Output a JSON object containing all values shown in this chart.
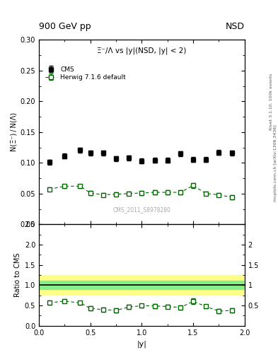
{
  "title_top": "900 GeV pp",
  "title_right": "NSD",
  "plot_title": "Ξ⁻/Λ vs |y|(NSD, |y| < 2)",
  "ylabel_main": "N(Ξ⁻) / N(Λ)",
  "ylabel_ratio": "Ratio to CMS",
  "xlabel": "|y|",
  "watermark": "CMS_2011_S8978280",
  "right_label_top": "Rivet 3.1.10, 100k events",
  "right_label_bottom": "mcplots.cern.ch [arXiv:1306.3436]",
  "cms_color": "black",
  "herwig_color": "#006600",
  "cms_x_pts": [
    0.1,
    0.25,
    0.4,
    0.5,
    0.625,
    0.75,
    0.875,
    1.0,
    1.125,
    1.25,
    1.375,
    1.5,
    1.625,
    1.75,
    1.875
  ],
  "cms_y_pts": [
    0.101,
    0.111,
    0.121,
    0.116,
    0.116,
    0.107,
    0.108,
    0.103,
    0.104,
    0.104,
    0.115,
    0.105,
    0.105,
    0.117,
    0.116
  ],
  "cms_yerr_pts": [
    0.004,
    0.004,
    0.004,
    0.004,
    0.004,
    0.004,
    0.004,
    0.004,
    0.004,
    0.004,
    0.004,
    0.004,
    0.004,
    0.004,
    0.004
  ],
  "herwig_x_pts": [
    0.1,
    0.25,
    0.4,
    0.5,
    0.625,
    0.75,
    0.875,
    1.0,
    1.125,
    1.25,
    1.375,
    1.5,
    1.625,
    1.75,
    1.875
  ],
  "herwig_y_pts": [
    0.057,
    0.062,
    0.062,
    0.051,
    0.048,
    0.049,
    0.05,
    0.051,
    0.052,
    0.052,
    0.052,
    0.063,
    0.05,
    0.048,
    0.044
  ],
  "herwig_yerr_pts": [
    0.003,
    0.003,
    0.003,
    0.003,
    0.003,
    0.003,
    0.003,
    0.003,
    0.003,
    0.003,
    0.003,
    0.004,
    0.003,
    0.003,
    0.003
  ],
  "ylim_main": [
    0.0,
    0.3
  ],
  "ylim_ratio": [
    0.0,
    2.5
  ],
  "xlim": [
    0.0,
    2.0
  ],
  "band_yellow_lo": 0.77,
  "band_yellow_hi": 1.25,
  "band_green_lo": 0.9,
  "band_green_hi": 1.12,
  "ratio_x": [
    0.1,
    0.25,
    0.4,
    0.5,
    0.625,
    0.75,
    0.875,
    1.0,
    1.125,
    1.25,
    1.375,
    1.5,
    1.625,
    1.75,
    1.875
  ],
  "ratio_y": [
    0.565,
    0.61,
    0.565,
    0.43,
    0.397,
    0.38,
    0.463,
    0.495,
    0.49,
    0.475,
    0.452,
    0.6,
    0.476,
    0.36,
    0.38
  ],
  "ratio_yerr": [
    0.05,
    0.04,
    0.04,
    0.05,
    0.05,
    0.05,
    0.05,
    0.05,
    0.05,
    0.05,
    0.05,
    0.07,
    0.05,
    0.05,
    0.05
  ]
}
